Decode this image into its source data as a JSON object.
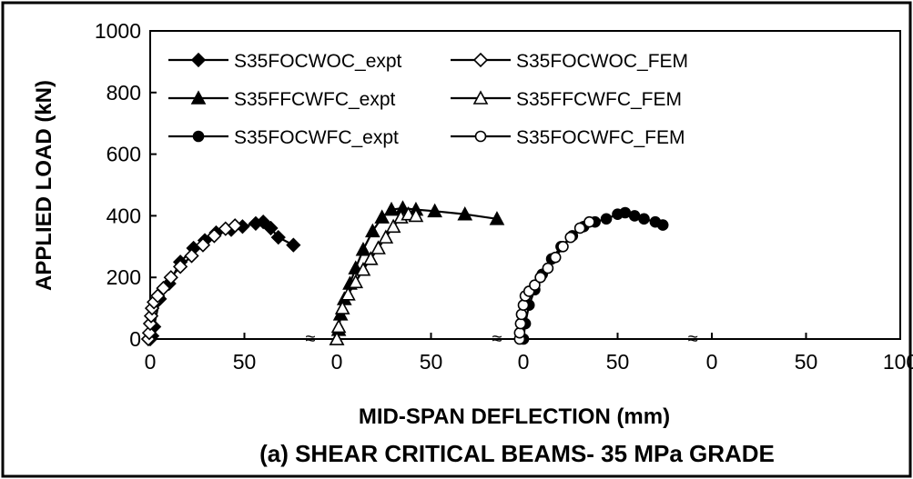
{
  "chart_data": {
    "type": "line",
    "title": "(a) SHEAR CRITICAL BEAMS- 35 MPa GRADE",
    "xlabel": "MID-SPAN DEFLECTION (mm)",
    "ylabel": "APPLIED LOAD (kN)",
    "ylim": [
      0,
      1000
    ],
    "y_ticks": [
      "0",
      "200",
      "400",
      "600",
      "800",
      "1000"
    ],
    "x_ticks": [
      "0",
      "50",
      "0",
      "50",
      "0",
      "50",
      "0",
      "50",
      "100"
    ],
    "axis_break_symbol": "≈",
    "grid": false,
    "legend_position": "top",
    "panel_xlim": [
      0,
      100
    ],
    "series": [
      {
        "name": "S35FOCWOC_expt",
        "panel": 0,
        "marker": "diamond",
        "filled": true,
        "color": "#000000",
        "x": [
          0,
          1,
          2,
          5,
          10,
          16,
          23,
          29,
          35,
          43,
          49,
          56,
          60,
          64,
          68,
          76
        ],
        "y": [
          0,
          10,
          40,
          130,
          180,
          250,
          295,
          320,
          345,
          355,
          365,
          375,
          380,
          360,
          330,
          305
        ]
      },
      {
        "name": "S35FOCWOC_FEM",
        "panel": 0,
        "marker": "diamond",
        "filled": false,
        "color": "#000000",
        "x": [
          -1,
          -0.5,
          0,
          0.5,
          1,
          2,
          4,
          7,
          11,
          16,
          22,
          28,
          34,
          40,
          45
        ],
        "y": [
          0,
          20,
          50,
          75,
          100,
          120,
          140,
          165,
          200,
          235,
          270,
          305,
          335,
          358,
          368
        ]
      },
      {
        "name": "S35FFCWFC_expt",
        "panel": 1,
        "marker": "triangle",
        "filled": true,
        "color": "#000000",
        "x": [
          0,
          1,
          2,
          4,
          7,
          10,
          14,
          19,
          24,
          29,
          35,
          42,
          52,
          68,
          85
        ],
        "y": [
          0,
          30,
          80,
          130,
          180,
          230,
          290,
          350,
          395,
          420,
          425,
          420,
          415,
          405,
          390
        ]
      },
      {
        "name": "S35FFCWFC_FEM",
        "panel": 1,
        "marker": "triangle",
        "filled": false,
        "color": "#000000",
        "x": [
          0,
          1,
          3,
          6,
          10,
          14,
          18,
          22,
          26,
          30,
          34,
          38,
          42
        ],
        "y": [
          0,
          40,
          100,
          145,
          185,
          225,
          260,
          295,
          330,
          365,
          395,
          405,
          400
        ]
      },
      {
        "name": "S35FOCWFC_expt",
        "panel": 2,
        "marker": "circle",
        "filled": true,
        "color": "#000000",
        "x": [
          0,
          1,
          3,
          6,
          10,
          15,
          20,
          26,
          32,
          38,
          44,
          50,
          54,
          59,
          64,
          70,
          74
        ],
        "y": [
          0,
          50,
          110,
          160,
          210,
          260,
          300,
          335,
          365,
          380,
          390,
          405,
          410,
          400,
          390,
          380,
          370
        ]
      },
      {
        "name": "S35FOCWFC_FEM",
        "panel": 2,
        "marker": "circle",
        "filled": false,
        "color": "#000000",
        "x": [
          -2,
          -2,
          -1.5,
          -1,
          0,
          1,
          3,
          6,
          9,
          13,
          17,
          21,
          25,
          30,
          35
        ],
        "y": [
          0,
          20,
          50,
          80,
          110,
          140,
          155,
          175,
          200,
          230,
          265,
          300,
          330,
          360,
          380
        ]
      }
    ]
  }
}
